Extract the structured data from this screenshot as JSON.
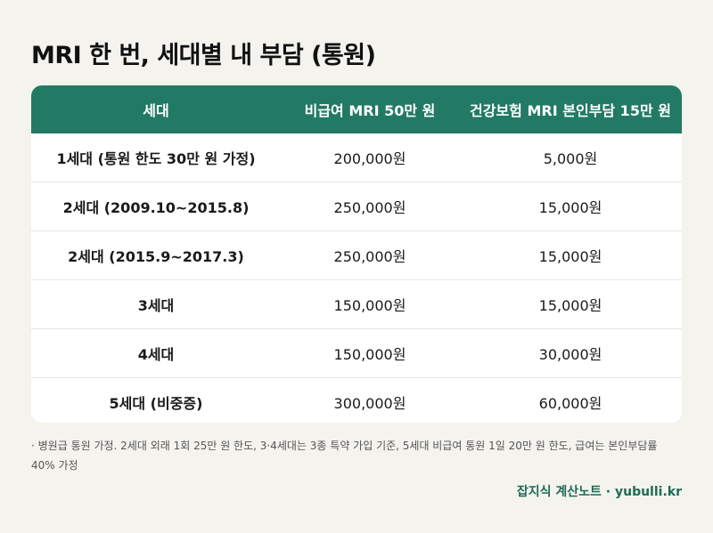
{
  "title": "MRI 한 번, 세대별 내 부담 (통원)",
  "table": {
    "headers": [
      "세대",
      "비급여 MRI 50만 원",
      "건강보험 MRI 본인부담 15만 원"
    ],
    "rows": [
      [
        "1세대 (통원 한도 30만 원 가정)",
        "200,000원",
        "5,000원"
      ],
      [
        "2세대 (2009.10~2015.8)",
        "250,000원",
        "15,000원"
      ],
      [
        "2세대 (2015.9~2017.3)",
        "250,000원",
        "15,000원"
      ],
      [
        "3세대",
        "150,000원",
        "15,000원"
      ],
      [
        "4세대",
        "150,000원",
        "30,000원"
      ],
      [
        "5세대 (비중증)",
        "300,000원",
        "60,000원"
      ]
    ]
  },
  "note": "· 병원급 통원 가정. 2세대 외래 1회 25만 원 한도, 3·4세대는 3종 특약 가입 기준, 5세대 비급여 통원 1일 20만 원 한도, 급여는 본인부담률 40% 가정",
  "footer": "잡지식 계산노트 · yubulli.kr",
  "colors": {
    "header_bg": "#227a64",
    "footer_text": "#1f6b55",
    "page_bg": "#f4f3ee"
  }
}
